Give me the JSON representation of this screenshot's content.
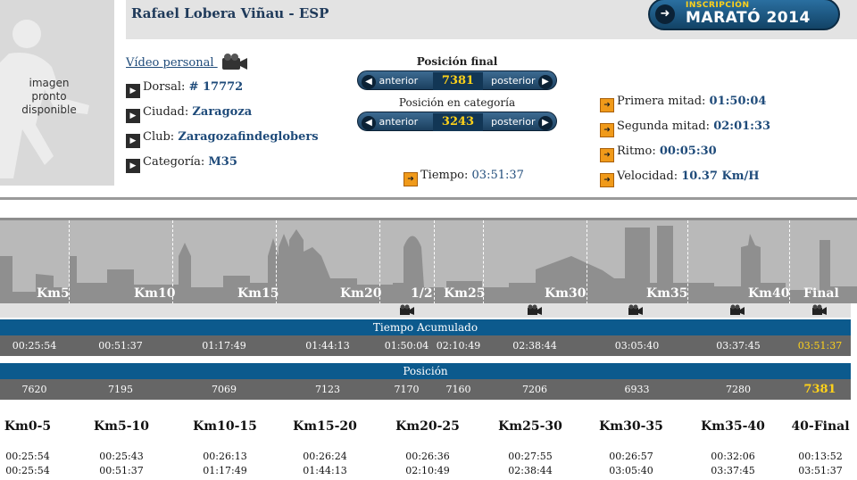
{
  "runner": {
    "name": "Rafael Lobera Viñau - ESP"
  },
  "photo": {
    "placeholder_lines": [
      "imagen",
      "pronto",
      "disponible"
    ]
  },
  "banner": {
    "small": "INSCRIPCIÓN",
    "big": "MARATÓ 2014"
  },
  "video": {
    "label": "Vídeo personal"
  },
  "details": [
    {
      "label": "Dorsal:",
      "value": "# 17772"
    },
    {
      "label": "Ciudad:",
      "value": "Zaragoza"
    },
    {
      "label": "Club:",
      "value": "Zaragozafindeglobers"
    },
    {
      "label": "Categoría:",
      "value": "M35"
    }
  ],
  "position_final": {
    "title": "Posición final",
    "prev": "anterior",
    "next": "posterior",
    "value": "7381"
  },
  "position_category": {
    "title": "Posición en categoría",
    "prev": "anterior",
    "next": "posterior",
    "value": "3243"
  },
  "time": {
    "label": "Tiempo:",
    "value": "03:51:37"
  },
  "stats": [
    {
      "label": "Primera mitad:",
      "value": "01:50:04"
    },
    {
      "label": "Segunda mitad:",
      "value": "02:01:33"
    },
    {
      "label": "Ritmo:",
      "value": "00:05:30"
    },
    {
      "label": "Velocidad:",
      "value": "10.37 Km/H"
    }
  ],
  "checkpoints": [
    "Km5",
    "Km10",
    "Km15",
    "Km20",
    "1/2",
    "Km25",
    "Km30",
    "Km35",
    "Km40",
    "Final"
  ],
  "tiempo_acumulado": {
    "title": "Tiempo Acumulado",
    "values": [
      "00:25:54",
      "00:51:37",
      "01:17:49",
      "01:44:13",
      "01:50:04",
      "02:10:49",
      "02:38:44",
      "03:05:40",
      "03:37:45",
      "03:51:37"
    ]
  },
  "posicion": {
    "title": "Posición",
    "values": [
      "7620",
      "7195",
      "7069",
      "7123",
      "7170",
      "7160",
      "7206",
      "6933",
      "7280",
      "7381"
    ]
  },
  "splits": {
    "headers": [
      "Km0-5",
      "Km5-10",
      "Km10-15",
      "Km15-20",
      "Km20-25",
      "Km25-30",
      "Km30-35",
      "Km35-40",
      "40-Final"
    ],
    "segment": [
      "00:25:54",
      "00:25:43",
      "00:26:13",
      "00:26:24",
      "00:26:36",
      "00:27:55",
      "00:26:57",
      "00:32:06",
      "00:13:52"
    ],
    "cumulative": [
      "00:25:54",
      "00:51:37",
      "01:17:49",
      "01:44:13",
      "02:10:49",
      "02:38:44",
      "03:05:40",
      "03:37:45",
      "03:51:37"
    ]
  },
  "colors": {
    "accent_blue": "#0c5a8d",
    "highlight_yellow": "#ffd21a",
    "row_gray": "#666666"
  }
}
